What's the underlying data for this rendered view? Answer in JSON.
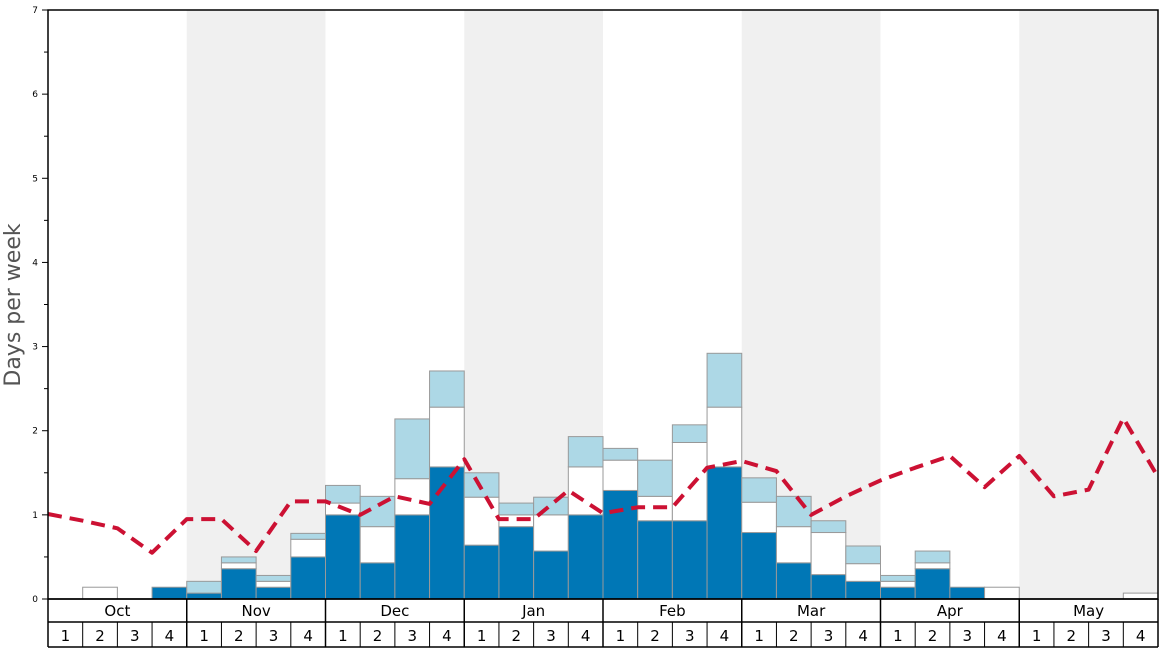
{
  "chart_data": {
    "type": "bar",
    "ylabel": "Days per week",
    "ylim": [
      0,
      7
    ],
    "yticks": [
      "0",
      "1",
      "2",
      "3",
      "4",
      "5",
      "6",
      "7"
    ],
    "months": [
      "Oct",
      "Nov",
      "Dec",
      "Jan",
      "Feb",
      "Mar",
      "Apr",
      "May"
    ],
    "weeks": [
      "1",
      "2",
      "3",
      "4"
    ],
    "stacked": true,
    "colors": {
      "dark": "#0077b6",
      "white": "#ffffff",
      "light": "#add8e6",
      "line": "#cc1133",
      "shade": "#f0f0f0",
      "border": "#999999"
    },
    "series": [
      {
        "values": [
          0,
          0,
          0,
          0.14,
          0.07,
          0.36,
          0.14,
          0.5,
          1,
          0.43,
          1,
          1.57,
          0.64,
          0.86,
          0.57,
          1,
          1.29,
          0.93,
          0.93,
          1.57,
          0.79,
          0.43,
          0.29,
          0.21,
          0.14,
          0.36,
          0.14,
          0,
          0,
          0,
          0,
          0
        ]
      },
      {
        "values": [
          0,
          0.14,
          0,
          0,
          0,
          0.07,
          0.07,
          0.21,
          0.14,
          0.43,
          0.43,
          0.71,
          0.57,
          0.14,
          0.43,
          0.57,
          0.36,
          0.29,
          0.93,
          0.71,
          0.36,
          0.43,
          0.5,
          0.21,
          0.07,
          0.07,
          0,
          0.14,
          0,
          0,
          0,
          0.07
        ]
      },
      {
        "values": [
          0,
          0,
          0,
          0,
          0.14,
          0.07,
          0.07,
          0.07,
          0.21,
          0.36,
          0.71,
          0.43,
          0.29,
          0.14,
          0.21,
          0.36,
          0.14,
          0.43,
          0.21,
          0.64,
          0.29,
          0.36,
          0.14,
          0.21,
          0.07,
          0.14,
          0,
          0,
          0,
          0,
          0,
          0
        ]
      },
      {
        "values": [
          1.01,
          0.93,
          0.84,
          0.55,
          0.95,
          0.95,
          0.57,
          1.16,
          1.16,
          1.0,
          1.22,
          1.13,
          1.66,
          0.95,
          0.95,
          1.29,
          1.02,
          1.09,
          1.09,
          1.56,
          1.64,
          1.52,
          1.0,
          1.22,
          1.41,
          1.56,
          1.7,
          1.33,
          1.7,
          1.22,
          1.3,
          2.15,
          1.45
        ]
      }
    ]
  }
}
